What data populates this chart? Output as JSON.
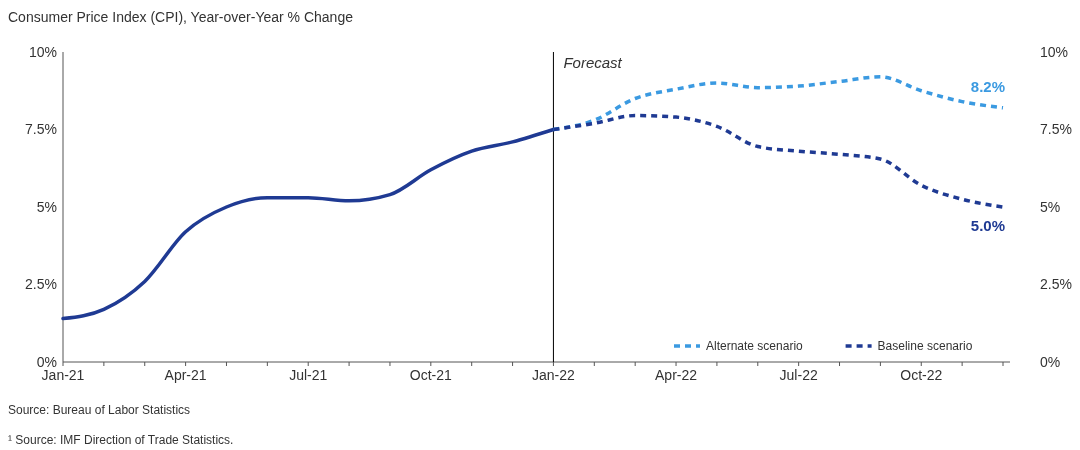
{
  "chart_data": {
    "type": "line",
    "title": "Consumer Price Index (CPI), Year-over-Year % Change",
    "categories": [
      "Jan-21",
      null,
      null,
      "Apr-21",
      null,
      null,
      "Jul-21",
      null,
      null,
      "Oct-21",
      null,
      null,
      "Jan-22",
      null,
      null,
      "Apr-22",
      null,
      null,
      "Jul-22",
      null,
      null,
      "Oct-22",
      null,
      null
    ],
    "series": [
      {
        "color": "#1f3a93",
        "line_style": "solid",
        "values": [
          1.4,
          1.7,
          2.6,
          4.2,
          5.0,
          5.3,
          5.3,
          5.2,
          5.4,
          6.2,
          6.8,
          7.1,
          7.5,
          null,
          null,
          null,
          null,
          null,
          null,
          null,
          null,
          null,
          null,
          null
        ]
      },
      {
        "name": "Alternate scenario",
        "color": "#3b9ae1",
        "line_style": "dashed",
        "values": [
          null,
          null,
          null,
          null,
          null,
          null,
          null,
          null,
          null,
          null,
          null,
          null,
          7.5,
          7.8,
          8.5,
          8.8,
          9.0,
          8.85,
          8.9,
          9.05,
          9.2,
          8.75,
          8.4,
          8.2
        ],
        "value_labels": [
          null,
          null,
          null,
          null,
          null,
          null,
          null,
          null,
          null,
          null,
          null,
          null,
          null,
          null,
          null,
          null,
          null,
          null,
          null,
          null,
          null,
          null,
          null,
          "8.2%"
        ]
      },
      {
        "name": "Baseline scenario",
        "color": "#1f3a93",
        "line_style": "dashed",
        "values": [
          null,
          null,
          null,
          null,
          null,
          null,
          null,
          null,
          null,
          null,
          null,
          null,
          7.5,
          7.7,
          7.95,
          7.9,
          7.6,
          6.95,
          6.8,
          6.7,
          6.55,
          5.7,
          5.25,
          5.0
        ],
        "value_labels": [
          null,
          null,
          null,
          null,
          null,
          null,
          null,
          null,
          null,
          null,
          null,
          null,
          null,
          null,
          null,
          null,
          null,
          null,
          null,
          null,
          null,
          null,
          null,
          "5.0%"
        ]
      }
    ],
    "ylim": [
      0,
      10
    ],
    "yticks": [
      {
        "value": 0,
        "label": "0%"
      },
      {
        "value": 2.5,
        "label": "2.5%"
      },
      {
        "value": 5,
        "label": "5%"
      },
      {
        "value": 7.5,
        "label": "7.5%"
      },
      {
        "value": 10,
        "label": "10%"
      }
    ],
    "y2lim": [
      0,
      10
    ],
    "y2ticks": [
      {
        "value": 0,
        "label": "0%"
      },
      {
        "value": 2.5,
        "label": "2.5%"
      },
      {
        "value": 5,
        "label": "5%"
      },
      {
        "value": 7.5,
        "label": "7.5%"
      },
      {
        "value": 10,
        "label": "10%"
      }
    ],
    "ref_lines": [
      {
        "axis": "x",
        "value": "Jan-22",
        "label": "Forecast",
        "color": "#000000"
      }
    ],
    "legend": "bottom right",
    "grid": false,
    "marker": "none",
    "annotations": [
      "Source: Bureau of Labor Statistics",
      "¹ Source: IMF Direction of Trade Statistics."
    ]
  }
}
